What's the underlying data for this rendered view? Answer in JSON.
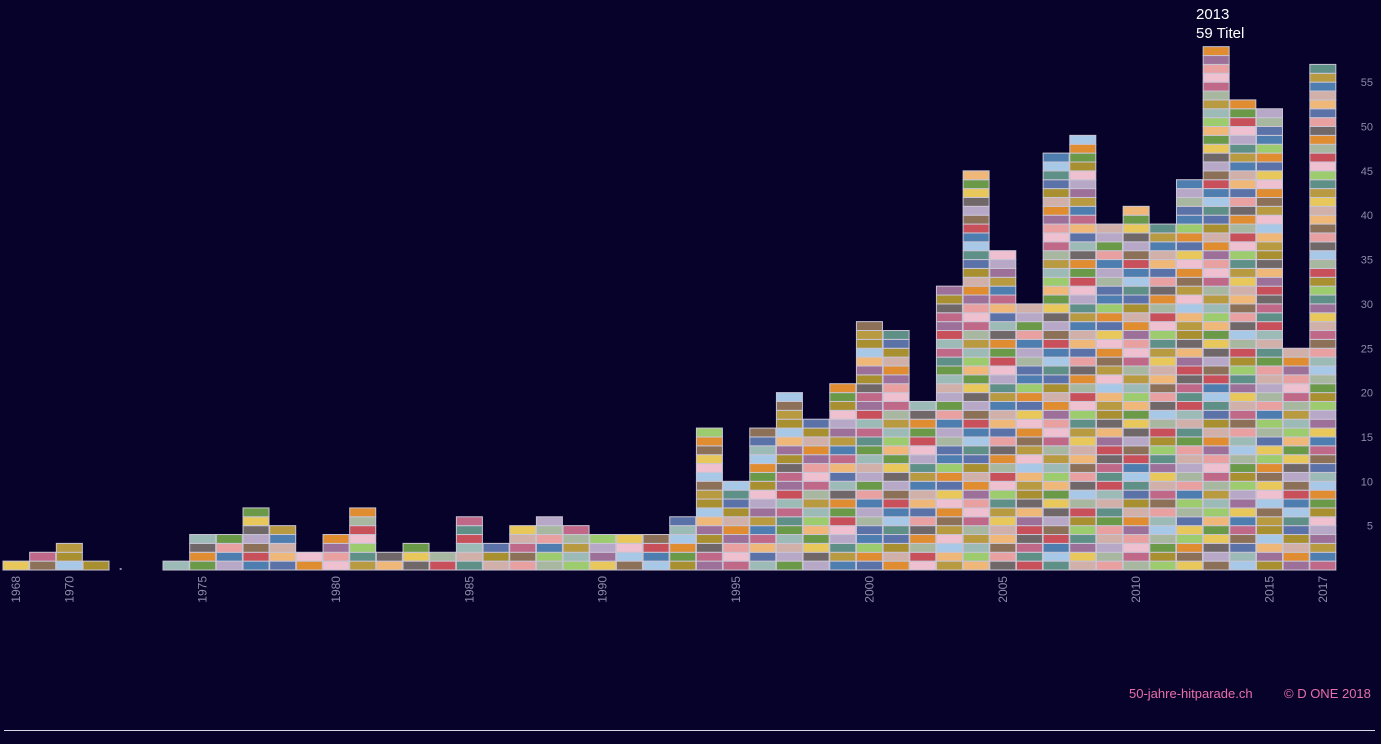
{
  "chart_data": {
    "type": "bar",
    "x": [
      1968,
      1969,
      1970,
      1971,
      1972,
      1973,
      1974,
      1975,
      1976,
      1977,
      1978,
      1979,
      1980,
      1981,
      1982,
      1983,
      1984,
      1985,
      1986,
      1987,
      1988,
      1989,
      1990,
      1991,
      1992,
      1993,
      1994,
      1995,
      1996,
      1997,
      1998,
      1999,
      2000,
      2001,
      2002,
      2003,
      2004,
      2005,
      2006,
      2007,
      2008,
      2009,
      2010,
      2011,
      2012,
      2013,
      2014,
      2015,
      2016,
      2017
    ],
    "values": [
      1,
      2,
      3,
      1,
      0,
      0,
      1,
      4,
      4,
      7,
      5,
      2,
      4,
      7,
      2,
      3,
      2,
      6,
      3,
      5,
      6,
      5,
      4,
      4,
      4,
      6,
      16,
      10,
      16,
      20,
      17,
      21,
      28,
      27,
      19,
      32,
      45,
      36,
      30,
      47,
      49,
      39,
      41,
      39,
      44,
      59,
      53,
      52,
      25,
      57
    ],
    "xticks": [
      1968,
      1970,
      1975,
      1980,
      1985,
      1990,
      1995,
      2000,
      2005,
      2010,
      2015,
      2017
    ],
    "yticks": [
      5,
      10,
      15,
      20,
      25,
      30,
      35,
      40,
      45,
      50,
      55
    ],
    "ylim": [
      0,
      59
    ],
    "highlight": {
      "year": "2013",
      "count_label": "59 Titel"
    },
    "block_colors": [
      "#e8c85a",
      "#e8a0a0",
      "#c8505a",
      "#b89a40",
      "#5a72a8",
      "#6a9a48",
      "#9c7098",
      "#8c7058",
      "#a8b8a0",
      "#5e9088",
      "#f0b878",
      "#e08c30",
      "#b8a8c8",
      "#c06888",
      "#a8c8e8",
      "#9ccc6e",
      "#d0b0a8",
      "#706868",
      "#eec0d0",
      "#4e7eb0",
      "#9cbab6",
      "#a89030"
    ]
  },
  "footer": {
    "site": "50-jahre-hitparade.ch",
    "copyright": "© D ONE 2018"
  },
  "colors": {
    "background": "#07022a",
    "axis_text": "#8e8aa8",
    "accent": "#e86fa8",
    "block_border": "#c8c4d4"
  }
}
